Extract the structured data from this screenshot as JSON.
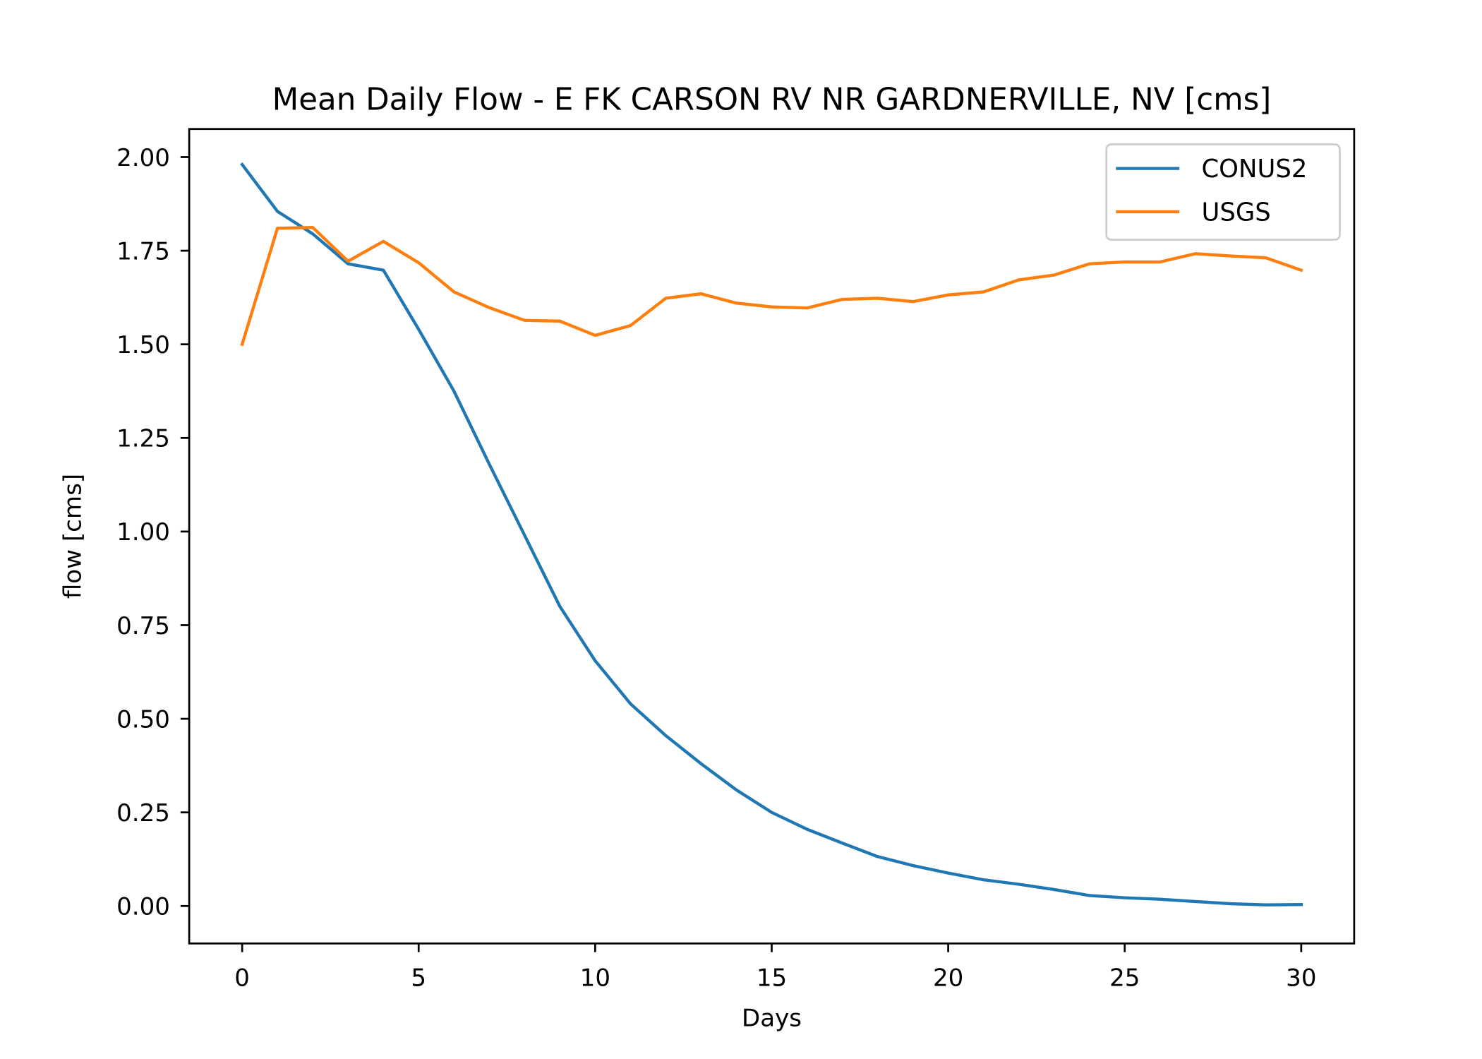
{
  "chart_data": {
    "type": "line",
    "title": "Mean Daily Flow - E FK CARSON RV NR GARDNERVILLE, NV [cms]",
    "xlabel": "Days",
    "ylabel": "flow [cms]",
    "xlim": [
      -1.5,
      31.5
    ],
    "ylim": [
      -0.1,
      2.075
    ],
    "xticks": [
      0,
      5,
      10,
      15,
      20,
      25,
      30
    ],
    "xtick_labels": [
      "0",
      "5",
      "10",
      "15",
      "20",
      "25",
      "30"
    ],
    "yticks": [
      0,
      0.25,
      0.5,
      0.75,
      1.0,
      1.25,
      1.5,
      1.75,
      2.0
    ],
    "ytick_labels": [
      "0.00",
      "0.25",
      "0.50",
      "0.75",
      "1.00",
      "1.25",
      "1.50",
      "1.75",
      "2.00"
    ],
    "grid": false,
    "legend_position": "top-right",
    "x": [
      0,
      1,
      2,
      3,
      4,
      5,
      6,
      7,
      8,
      9,
      10,
      11,
      12,
      13,
      14,
      15,
      16,
      17,
      18,
      19,
      20,
      21,
      22,
      23,
      24,
      25,
      26,
      27,
      28,
      29,
      30
    ],
    "series": [
      {
        "name": "CONUS2",
        "color": "#1f77b4",
        "values": [
          1.98,
          1.855,
          1.795,
          1.715,
          1.698,
          1.54,
          1.375,
          1.18,
          0.99,
          0.8,
          0.655,
          0.54,
          0.455,
          0.38,
          0.31,
          0.25,
          0.205,
          0.168,
          0.132,
          0.108,
          0.088,
          0.07,
          0.058,
          0.044,
          0.028,
          0.022,
          0.018,
          0.012,
          0.006,
          0.003,
          0.004
        ]
      },
      {
        "name": "USGS",
        "color": "#ff7f0e",
        "values": [
          1.5,
          1.81,
          1.812,
          1.722,
          1.775,
          1.718,
          1.64,
          1.598,
          1.564,
          1.562,
          1.524,
          1.55,
          1.623,
          1.635,
          1.61,
          1.6,
          1.597,
          1.62,
          1.623,
          1.614,
          1.632,
          1.64,
          1.672,
          1.685,
          1.715,
          1.72,
          1.72,
          1.742,
          1.736,
          1.731,
          1.698
        ]
      }
    ]
  }
}
